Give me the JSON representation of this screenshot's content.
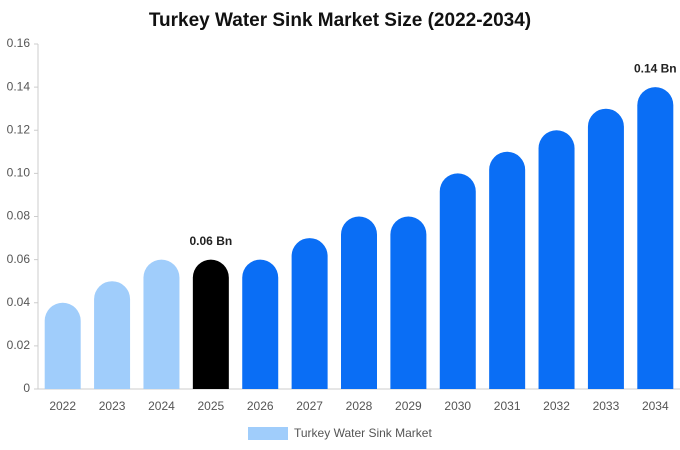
{
  "chart_data": {
    "type": "bar",
    "title": "Turkey Water Sink Market Size (2022-2034)",
    "categories": [
      "2022",
      "2023",
      "2024",
      "2025",
      "2026",
      "2027",
      "2028",
      "2029",
      "2030",
      "2031",
      "2032",
      "2033",
      "2034"
    ],
    "series": [
      {
        "name": "Turkey Water Sink Market",
        "color": "#a0cdfb",
        "values": [
          0.04,
          0.05,
          0.06,
          0.06,
          0.06,
          0.07,
          0.08,
          0.08,
          0.1,
          0.11,
          0.12,
          0.13,
          0.14
        ],
        "colors": [
          "#a0cdfb",
          "#a0cdfb",
          "#a0cdfb",
          "#000000",
          "#0a6ef5",
          "#0a6ef5",
          "#0a6ef5",
          "#0a6ef5",
          "#0a6ef5",
          "#0a6ef5",
          "#0a6ef5",
          "#0a6ef5",
          "#0a6ef5"
        ],
        "value_labels": [
          null,
          null,
          null,
          "0.06 Bn",
          null,
          null,
          null,
          null,
          null,
          null,
          null,
          null,
          "0.14 Bn"
        ]
      }
    ],
    "ylim": [
      0,
      0.16
    ],
    "yticks": [
      0,
      0.02,
      0.04,
      0.06,
      0.08,
      {
        "value": 0.1,
        "label": "0.10"
      },
      0.12,
      0.14,
      0.16
    ],
    "grid": false
  }
}
